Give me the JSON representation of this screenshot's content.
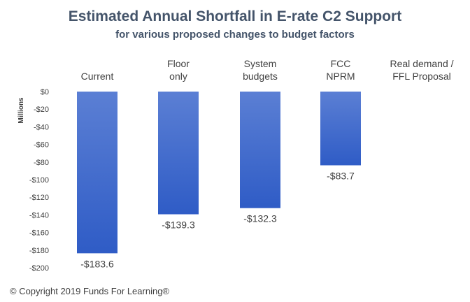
{
  "chart_data": {
    "type": "bar",
    "title": "Estimated Annual Shortfall in E-rate C2 Support",
    "subtitle": "for various proposed changes to budget factors",
    "ylabel": "Millions",
    "xlabel": "",
    "categories": [
      [
        "Current"
      ],
      [
        "Floor",
        "only"
      ],
      [
        "System",
        "budgets"
      ],
      [
        "FCC",
        "NPRM"
      ],
      [
        "Real demand /",
        "FFL Proposal"
      ]
    ],
    "values": [
      -183.6,
      -139.3,
      -132.3,
      -83.7,
      0
    ],
    "data_labels": [
      "-$183.6",
      "-$139.3",
      "-$132.3",
      "-$83.7",
      ""
    ],
    "ylim": [
      -200,
      0
    ],
    "yticks": [
      0,
      -20,
      -40,
      -60,
      -80,
      -100,
      -120,
      -140,
      -160,
      -180,
      -200
    ],
    "ytick_labels": [
      "$0",
      "-$20",
      "-$40",
      "-$60",
      "-$80",
      "-$100",
      "-$120",
      "-$140",
      "-$160",
      "-$180",
      "-$200"
    ],
    "grid": false,
    "legend": "none",
    "bar_color_top": "#5b7fd4",
    "bar_color_bottom": "#2f5cc6"
  },
  "footer": {
    "copyright": "© Copyright 2019 Funds For Learning®"
  }
}
